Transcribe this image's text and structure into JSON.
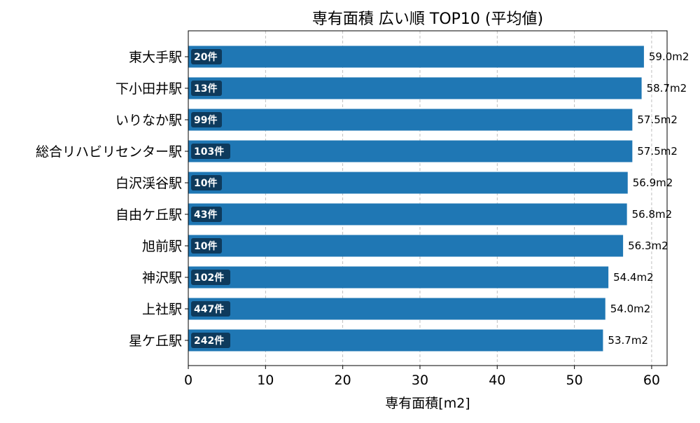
{
  "chart_data": {
    "type": "bar",
    "orientation": "horizontal",
    "title": "専有面積 広い順 TOP10 (平均値)",
    "xlabel": "専有面積[m2]",
    "ylabel": "",
    "xlim": [
      0,
      62
    ],
    "xticks": [
      0,
      10,
      20,
      30,
      40,
      50,
      60
    ],
    "grid": "x-dashed",
    "bar_color": "#1f77b4",
    "count_badge_color": "#0e3a5c",
    "categories": [
      "東大手駅",
      "下小田井駅",
      "いりなか駅",
      "総合リハビリセンター駅",
      "白沢渓谷駅",
      "自由ケ丘駅",
      "旭前駅",
      "神沢駅",
      "上社駅",
      "星ケ丘駅"
    ],
    "values": [
      59.0,
      58.7,
      57.5,
      57.5,
      56.9,
      56.8,
      56.3,
      54.4,
      54.0,
      53.7
    ],
    "value_labels": [
      "59.0m2",
      "58.7m2",
      "57.5m2",
      "57.5m2",
      "56.9m2",
      "56.8m2",
      "56.3m2",
      "54.4m2",
      "54.0m2",
      "53.7m2"
    ],
    "counts": [
      "20件",
      "13件",
      "99件",
      "103件",
      "10件",
      "43件",
      "10件",
      "102件",
      "447件",
      "242件"
    ]
  }
}
